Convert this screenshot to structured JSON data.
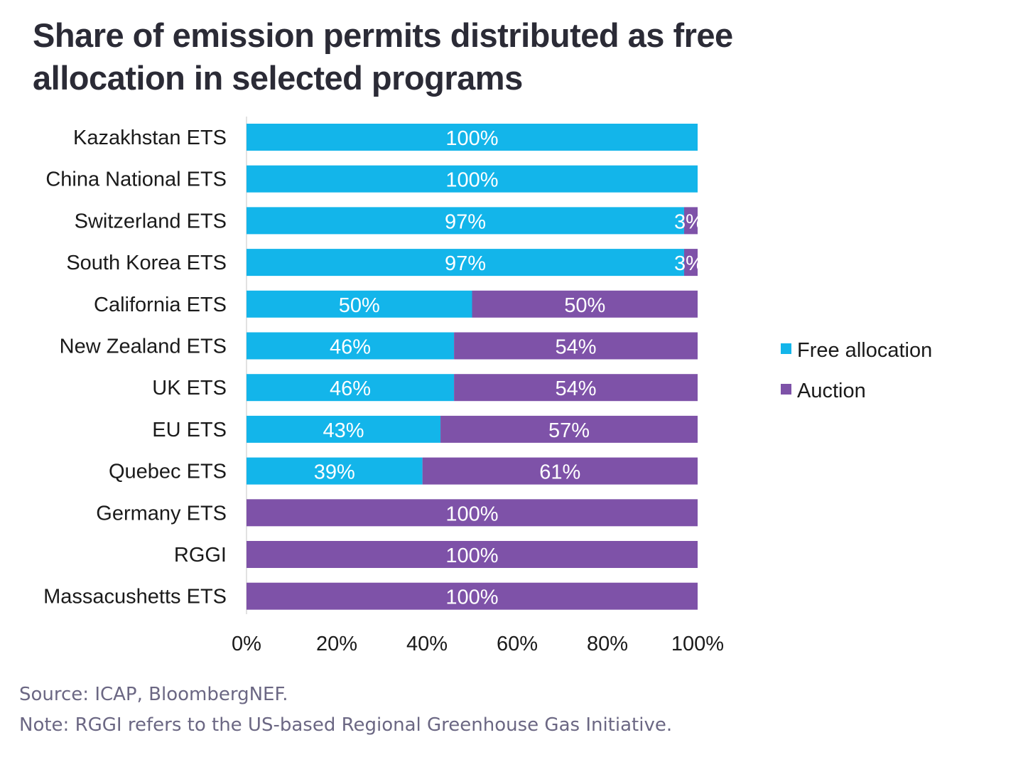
{
  "chart_data": {
    "type": "bar",
    "orientation": "horizontal",
    "stacked": true,
    "title": "Share of emission permits distributed as free allocation in selected programs",
    "categories": [
      "Kazakhstan ETS",
      "China National ETS",
      "Switzerland ETS",
      "South Korea ETS",
      "California ETS",
      "New Zealand ETS",
      "UK ETS",
      "EU ETS",
      "Quebec ETS",
      "Germany ETS",
      "RGGI",
      "Massacushetts ETS"
    ],
    "series": [
      {
        "name": "Free allocation",
        "color": "#13b5ea",
        "values": [
          100,
          100,
          97,
          97,
          50,
          46,
          46,
          43,
          39,
          0,
          0,
          0
        ],
        "labels": [
          "100%",
          "100%",
          "97%",
          "97%",
          "50%",
          "46%",
          "46%",
          "43%",
          "39%",
          "",
          "",
          ""
        ]
      },
      {
        "name": "Auction",
        "color": "#7e52a8",
        "values": [
          0,
          0,
          3,
          3,
          50,
          54,
          54,
          57,
          61,
          100,
          100,
          100
        ],
        "labels": [
          "",
          "",
          "3%",
          "3%",
          "50%",
          "54%",
          "54%",
          "57%",
          "61%",
          "100%",
          "100%",
          "100%"
        ]
      }
    ],
    "xlim": [
      0,
      100
    ],
    "xticks": [
      0,
      20,
      40,
      60,
      80,
      100
    ],
    "xtick_labels": [
      "0%",
      "20%",
      "40%",
      "60%",
      "80%",
      "100%"
    ],
    "xlabel": "",
    "ylabel": "",
    "grid": false,
    "legend_position": "right"
  },
  "footer": {
    "source": "Source: ICAP, BloombergNEF.",
    "note": "Note: RGGI refers to the US-based Regional Greenhouse Gas Initiative."
  }
}
